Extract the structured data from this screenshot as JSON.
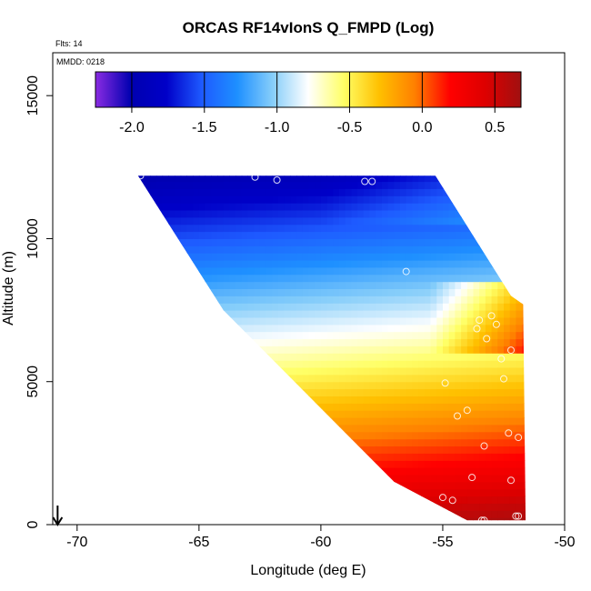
{
  "chart_data": {
    "type": "heatmap",
    "title": "ORCAS RF14vIonS Q_FMPD (Log)",
    "flights_note": "Flts: 14",
    "date_note": "MMDD: 0218",
    "xlabel": "Longitude (deg E)",
    "ylabel": "Altitude (m)",
    "xlim": [
      -71.0,
      -50.0
    ],
    "ylim": [
      0,
      16500
    ],
    "x_ticks": [
      -70,
      -65,
      -60,
      -55,
      -50
    ],
    "x_tick_labels": [
      "-70",
      "-65",
      "-60",
      "-55",
      "-50"
    ],
    "y_ticks": [
      0,
      5000,
      10000,
      15000
    ],
    "y_tick_labels": [
      "0",
      "5000",
      "10000",
      "15000"
    ],
    "colorbar": {
      "range": [
        -2.25,
        0.68
      ],
      "ticks": [
        -2.0,
        -1.5,
        -1.0,
        -0.5,
        0.0,
        0.5
      ],
      "tick_labels": [
        "-2.0",
        "-1.5",
        "-1.0",
        "-0.5",
        "0.0",
        "0.5"
      ],
      "colors": [
        "#8a2be2",
        "#0000b0",
        "#0000c8",
        "#1e5aff",
        "#1e90ff",
        "#87cefa",
        "#ffffff",
        "#ffff66",
        "#ffc000",
        "#ff8000",
        "#ff0000",
        "#dd0000",
        "#a01010"
      ]
    },
    "region": {
      "outline": [
        [
          -67.5,
          12200
        ],
        [
          -55.3,
          12200
        ],
        [
          -52.2,
          8000
        ],
        [
          -51.7,
          7700
        ],
        [
          -51.6,
          150
        ],
        [
          -54.0,
          150
        ],
        [
          -57.0,
          1500
        ],
        [
          -64.0,
          7500
        ],
        [
          -67.5,
          12200
        ]
      ],
      "value_model": "log10 Q_FMPD increases with decreasing altitude and toward the east; low values (~ -2.2) near 12 km west, high values (~0.6) near surface east"
    },
    "flight_points": [
      [
        -67.4,
        12200
      ],
      [
        -62.7,
        12150
      ],
      [
        -61.8,
        12050
      ],
      [
        -58.2,
        12000
      ],
      [
        -57.9,
        12000
      ],
      [
        -56.5,
        8850
      ],
      [
        -53.0,
        7300
      ],
      [
        -52.8,
        7000
      ],
      [
        -53.5,
        7150
      ],
      [
        -53.6,
        6850
      ],
      [
        -53.2,
        6500
      ],
      [
        -52.6,
        5800
      ],
      [
        -52.2,
        6100
      ],
      [
        -52.5,
        5100
      ],
      [
        -54.9,
        4950
      ],
      [
        -54.0,
        4000
      ],
      [
        -54.4,
        3800
      ],
      [
        -52.3,
        3200
      ],
      [
        -51.9,
        3050
      ],
      [
        -53.3,
        2750
      ],
      [
        -52.2,
        1550
      ],
      [
        -53.8,
        1650
      ],
      [
        -55.0,
        950
      ],
      [
        -54.6,
        850
      ],
      [
        -55.0,
        350
      ],
      [
        -53.3,
        150
      ],
      [
        -53.4,
        150
      ],
      [
        -51.9,
        300
      ],
      [
        -52.0,
        300
      ]
    ],
    "arrow_longitude": -70.8
  }
}
